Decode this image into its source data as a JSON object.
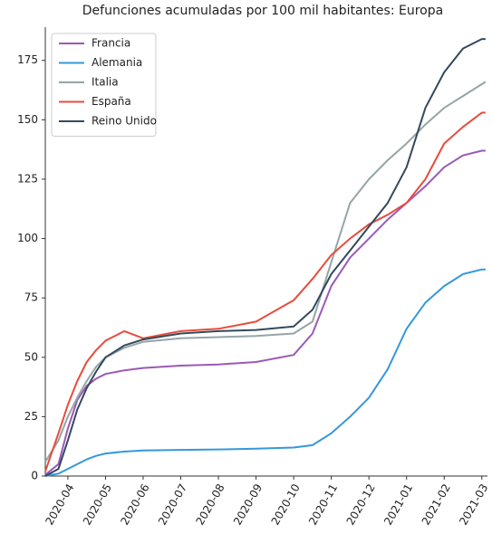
{
  "chart_data": {
    "type": "line",
    "title": "Defunciones acumuladas por 100 mil habitantes: Europa",
    "x": [
      3.4,
      3.75,
      4,
      4.25,
      4.5,
      4.75,
      5,
      5.5,
      6,
      7,
      8,
      9,
      10,
      10.5,
      11,
      11.5,
      12,
      12.5,
      13,
      13.5,
      14,
      14.5,
      15,
      15.1
    ],
    "series": [
      {
        "name": "Francia",
        "color": "#9b59b6",
        "values": [
          0.5,
          5,
          20,
          32,
          38,
          41,
          43,
          44.5,
          45.5,
          46.5,
          47,
          48,
          51,
          60,
          80,
          92,
          100,
          108,
          115,
          122,
          130,
          135,
          137,
          137
        ]
      },
      {
        "name": "Alemania",
        "color": "#3498db",
        "values": [
          0,
          1,
          3,
          5,
          7,
          8.5,
          9.5,
          10.3,
          10.8,
          11,
          11.2,
          11.5,
          12,
          13,
          18,
          25,
          33,
          45,
          62,
          73,
          80,
          85,
          87,
          87
        ]
      },
      {
        "name": "Italia",
        "color": "#95a5a6",
        "values": [
          6,
          15,
          25,
          33,
          40,
          46,
          50,
          54,
          56.5,
          58,
          58.5,
          59,
          60,
          65,
          90,
          115,
          125,
          133,
          140,
          148,
          155,
          160,
          165,
          166
        ]
      },
      {
        "name": "España",
        "color": "#e74c3c",
        "values": [
          2,
          18,
          30,
          40,
          48,
          53,
          57,
          61,
          58,
          61,
          62,
          65,
          74,
          83,
          93,
          100,
          106,
          110,
          115,
          125,
          140,
          147,
          153,
          153
        ]
      },
      {
        "name": "Reino Unido",
        "color": "#34495e",
        "values": [
          0,
          3,
          15,
          28,
          37,
          44,
          50,
          55,
          57.5,
          60,
          61,
          61.5,
          63,
          70,
          85,
          95,
          105,
          115,
          130,
          155,
          170,
          180,
          184,
          184
        ]
      }
    ],
    "xlim": [
      3.4,
      15.15
    ],
    "xticks": [
      {
        "value": 4,
        "label": "2020-04"
      },
      {
        "value": 5,
        "label": "2020-05"
      },
      {
        "value": 6,
        "label": "2020-06"
      },
      {
        "value": 7,
        "label": "2020-07"
      },
      {
        "value": 8,
        "label": "2020-08"
      },
      {
        "value": 9,
        "label": "2020-09"
      },
      {
        "value": 10,
        "label": "2020-10"
      },
      {
        "value": 11,
        "label": "2020-11"
      },
      {
        "value": 12,
        "label": "2020-12"
      },
      {
        "value": 13,
        "label": "2021-01"
      },
      {
        "value": 14,
        "label": "2021-02"
      },
      {
        "value": 15,
        "label": "2021-03"
      }
    ],
    "ylim": [
      0,
      189
    ],
    "yticks": [
      0,
      25,
      50,
      75,
      100,
      125,
      150,
      175
    ],
    "grid": false,
    "legend": "upper-left"
  }
}
